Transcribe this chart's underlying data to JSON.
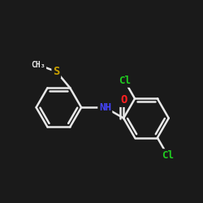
{
  "bg_color": "#1a1a1a",
  "bond_color": "#e8e8e8",
  "bond_width": 1.8,
  "atom_colors": {
    "S": "#c8a000",
    "N": "#4444ff",
    "O": "#ff2020",
    "Cl": "#20cc20",
    "C": "#e8e8e8",
    "H": "#e8e8e8"
  },
  "figsize": [
    2.5,
    2.5
  ],
  "dpi": 100,
  "xlim": [
    -1.7,
    1.7
  ],
  "ylim": [
    -1.7,
    1.7
  ]
}
